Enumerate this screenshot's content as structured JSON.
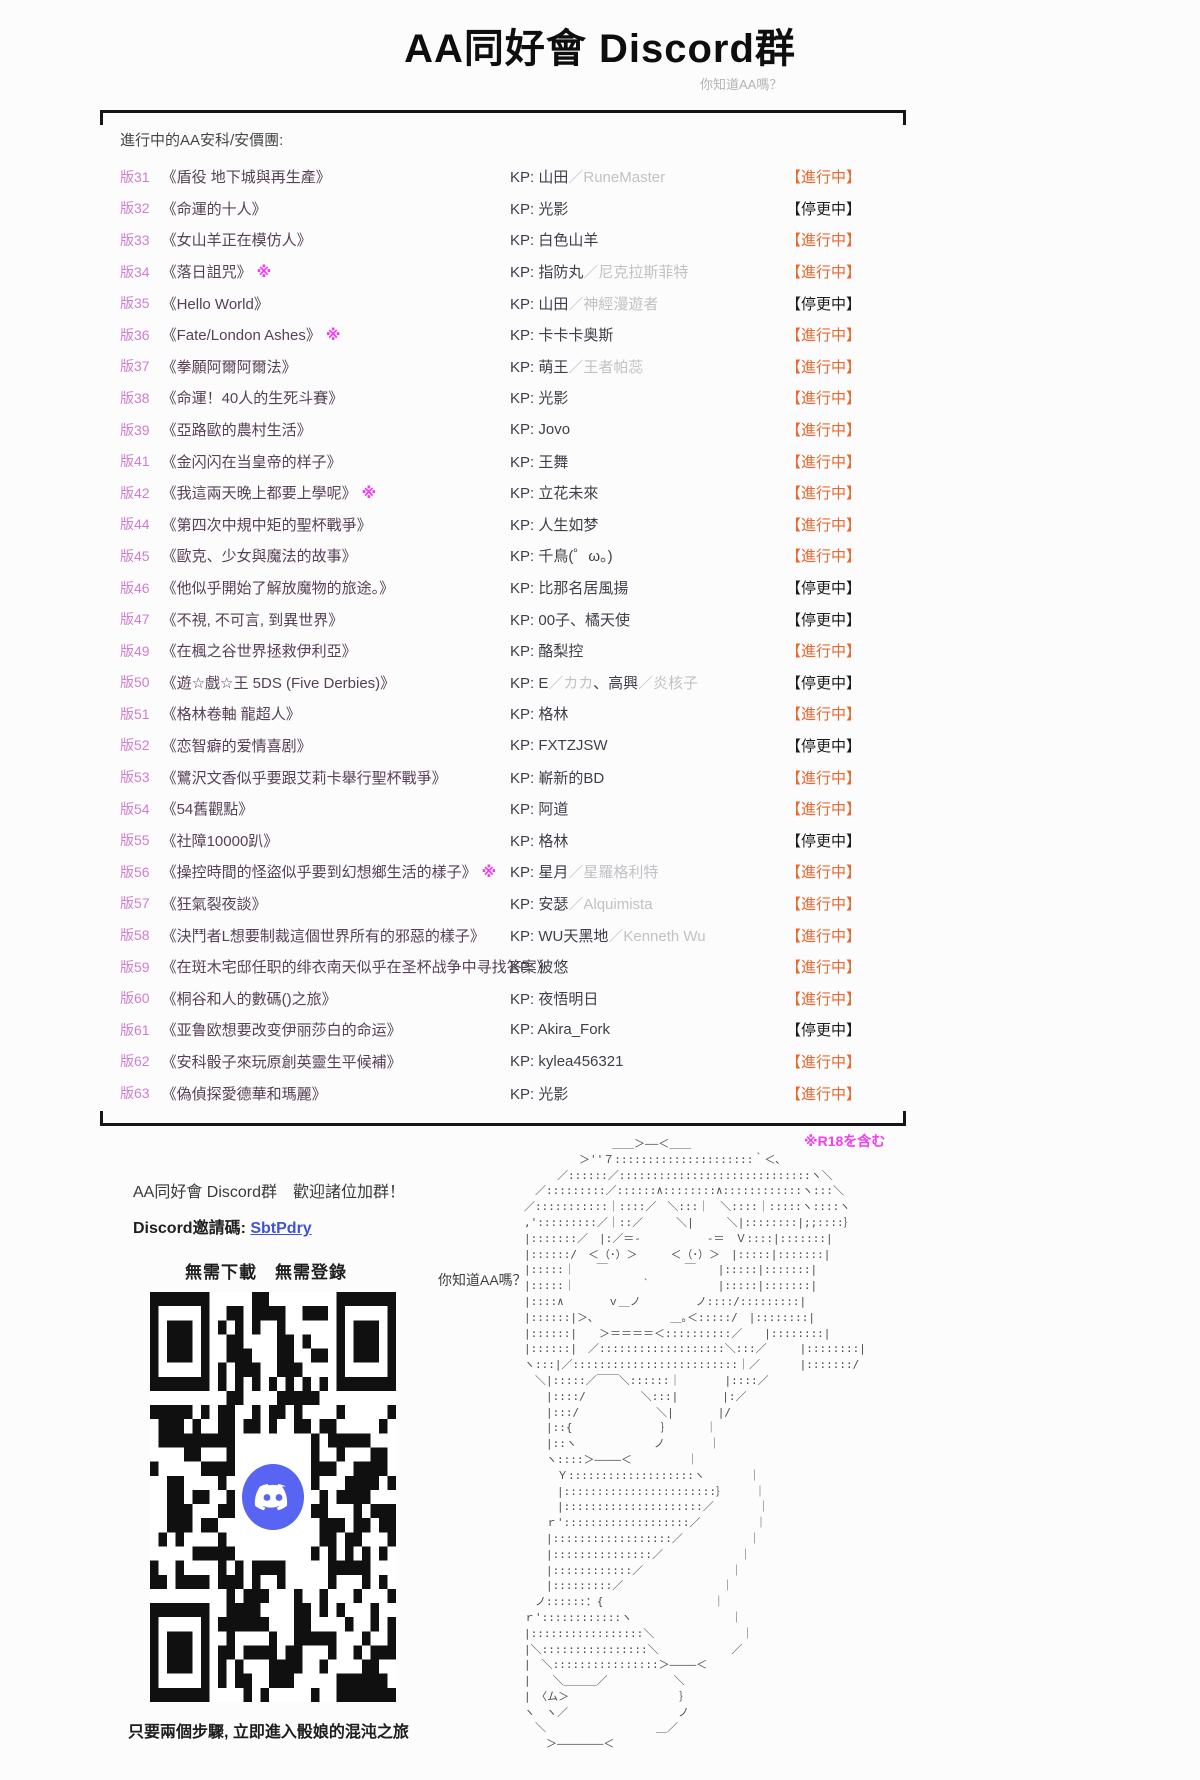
{
  "page": {
    "title": "AA同好會 Discord群",
    "subtitle": "你知道AA嗎？",
    "r18_note": "※R18を含む"
  },
  "colors": {
    "status_active": "#e8682f",
    "status_paused": "#1c1c1c",
    "version_label": "#cf7ecf",
    "title_text": "#584058",
    "r18_mark": "#f23ef2",
    "kp_secondary": "#c2c2c6",
    "link": "#4053d4",
    "discord_blurple": "#5865F2"
  },
  "list": {
    "header": "進行中的AA安科/安價團:",
    "kp_prefix": "KP: ",
    "rows": [
      {
        "num": "版31",
        "title": "《盾役 地下城與再生產》",
        "r18": false,
        "kp": [
          {
            "t": "山田",
            "gray": false
          },
          {
            "t": "／RuneMaster",
            "gray": true
          }
        ],
        "status": "【進行中】",
        "active": true
      },
      {
        "num": "版32",
        "title": "《命運的十人》",
        "r18": false,
        "kp": [
          {
            "t": "光影",
            "gray": false
          }
        ],
        "status": "【停更中】",
        "active": false
      },
      {
        "num": "版33",
        "title": "《女山羊正在模仿人》",
        "r18": false,
        "kp": [
          {
            "t": "白色山羊",
            "gray": false
          }
        ],
        "status": "【進行中】",
        "active": true
      },
      {
        "num": "版34",
        "title": "《落日詛咒》",
        "r18": true,
        "kp": [
          {
            "t": "指防丸",
            "gray": false
          },
          {
            "t": "／尼克拉斯菲特",
            "gray": true
          }
        ],
        "status": "【進行中】",
        "active": true
      },
      {
        "num": "版35",
        "title": "《Hello World》",
        "r18": false,
        "kp": [
          {
            "t": "山田",
            "gray": false
          },
          {
            "t": "／神經漫遊者",
            "gray": true
          }
        ],
        "status": "【停更中】",
        "active": false
      },
      {
        "num": "版36",
        "title": "《Fate/London Ashes》",
        "r18": true,
        "kp": [
          {
            "t": "卡卡卡奥斯",
            "gray": false
          }
        ],
        "status": "【進行中】",
        "active": true
      },
      {
        "num": "版37",
        "title": "《拳願阿爾阿爾法》",
        "r18": false,
        "kp": [
          {
            "t": "萌王",
            "gray": false
          },
          {
            "t": "／王者帕蕊",
            "gray": true
          }
        ],
        "status": "【進行中】",
        "active": true
      },
      {
        "num": "版38",
        "title": "《命運！40人的生死斗賽》",
        "r18": false,
        "kp": [
          {
            "t": "光影",
            "gray": false
          }
        ],
        "status": "【進行中】",
        "active": true
      },
      {
        "num": "版39",
        "title": "《亞路歐的農村生活》",
        "r18": false,
        "kp": [
          {
            "t": "Jovo",
            "gray": false
          }
        ],
        "status": "【進行中】",
        "active": true
      },
      {
        "num": "版41",
        "title": "《金闪闪在当皇帝的样子》",
        "r18": false,
        "kp": [
          {
            "t": "王舞",
            "gray": false
          }
        ],
        "status": "【進行中】",
        "active": true
      },
      {
        "num": "版42",
        "title": "《我這兩天晚上都要上學呢》",
        "r18": true,
        "kp": [
          {
            "t": "立花未來",
            "gray": false
          }
        ],
        "status": "【進行中】",
        "active": true
      },
      {
        "num": "版44",
        "title": "《第四次中規中矩的聖杯戰爭》",
        "r18": false,
        "kp": [
          {
            "t": "人生如梦",
            "gray": false
          }
        ],
        "status": "【進行中】",
        "active": true
      },
      {
        "num": "版45",
        "title": "《歐克、少女與魔法的故事》",
        "r18": false,
        "kp": [
          {
            "t": "千鳥(゜ω。)",
            "gray": false
          }
        ],
        "status": "【進行中】",
        "active": true
      },
      {
        "num": "版46",
        "title": "《他似乎開始了解放魔物的旅途。》",
        "r18": false,
        "kp": [
          {
            "t": "比那名居風揚",
            "gray": false
          }
        ],
        "status": "【停更中】",
        "active": false
      },
      {
        "num": "版47",
        "title": "《不視, 不可言, 到異世界》",
        "r18": false,
        "kp": [
          {
            "t": "00子、橘天使",
            "gray": false
          }
        ],
        "status": "【停更中】",
        "active": false
      },
      {
        "num": "版49",
        "title": "《在楓之谷世界拯救伊利亞》",
        "r18": false,
        "kp": [
          {
            "t": "酪梨控",
            "gray": false
          }
        ],
        "status": "【進行中】",
        "active": true
      },
      {
        "num": "版50",
        "title": "《遊☆戲☆王 5DS (Five Derbies)》",
        "r18": false,
        "kp": [
          {
            "t": "E",
            "gray": false
          },
          {
            "t": "／カカ",
            "gray": true
          },
          {
            "t": "、高興",
            "gray": false
          },
          {
            "t": "／炎核子",
            "gray": true
          }
        ],
        "status": "【停更中】",
        "active": false
      },
      {
        "num": "版51",
        "title": "《格林卷軸 龍超人》",
        "r18": false,
        "kp": [
          {
            "t": "格林",
            "gray": false
          }
        ],
        "status": "【進行中】",
        "active": true
      },
      {
        "num": "版52",
        "title": "《恋智癖的爱情喜剧》",
        "r18": false,
        "kp": [
          {
            "t": "FXTZJSW",
            "gray": false
          }
        ],
        "status": "【停更中】",
        "active": false
      },
      {
        "num": "版53",
        "title": "《鷺沢文香似乎要跟艾莉卡舉行聖杯戰爭》",
        "r18": false,
        "kp": [
          {
            "t": "嶄新的BD",
            "gray": false
          }
        ],
        "status": "【進行中】",
        "active": true
      },
      {
        "num": "版54",
        "title": "《54舊觀點》",
        "r18": false,
        "kp": [
          {
            "t": "阿道",
            "gray": false
          }
        ],
        "status": "【進行中】",
        "active": true
      },
      {
        "num": "版55",
        "title": "《社障10000趴》",
        "r18": false,
        "kp": [
          {
            "t": "格林",
            "gray": false
          }
        ],
        "status": "【停更中】",
        "active": false
      },
      {
        "num": "版56",
        "title": "《操控時間的怪盜似乎要到幻想鄉生活的樣子》",
        "r18": true,
        "kp": [
          {
            "t": "星月",
            "gray": false
          },
          {
            "t": "／星羅格利特",
            "gray": true
          }
        ],
        "status": "【進行中】",
        "active": true
      },
      {
        "num": "版57",
        "title": "《狂氣裂夜談》",
        "r18": false,
        "kp": [
          {
            "t": "安瑟",
            "gray": false
          },
          {
            "t": "／Alquimista",
            "gray": true
          }
        ],
        "status": "【進行中】",
        "active": true
      },
      {
        "num": "版58",
        "title": "《決鬥者L想要制裁這個世界所有的邪惡的樣子》",
        "r18": false,
        "kp": [
          {
            "t": "WU天黑地",
            "gray": false
          },
          {
            "t": "／Kenneth Wu",
            "gray": true
          }
        ],
        "status": "【進行中】",
        "active": true
      },
      {
        "num": "版59",
        "title": "《在斑木宅邸任职的绯衣南天似乎在圣杯战争中寻找答案》",
        "r18": false,
        "kp": [
          {
            "t": "彼悠",
            "gray": false
          }
        ],
        "status": "【進行中】",
        "active": true
      },
      {
        "num": "版60",
        "title": "《桐谷和人的數碼()之旅》",
        "r18": false,
        "kp": [
          {
            "t": "夜悟明日",
            "gray": false
          }
        ],
        "status": "【進行中】",
        "active": true
      },
      {
        "num": "版61",
        "title": "《亚鲁欧想要改变伊丽莎白的命运》",
        "r18": false,
        "kp": [
          {
            "t": "Akira_Fork",
            "gray": false
          }
        ],
        "status": "【停更中】",
        "active": false
      },
      {
        "num": "版62",
        "title": "《安科骰子來玩原創英靈生平候補》",
        "r18": false,
        "kp": [
          {
            "t": "kylea456321",
            "gray": false
          }
        ],
        "status": "【進行中】",
        "active": true
      },
      {
        "num": "版63",
        "title": "《偽偵探愛德華和瑪麗》",
        "r18": false,
        "kp": [
          {
            "t": "光影",
            "gray": false
          }
        ],
        "status": "【進行中】",
        "active": true
      }
    ]
  },
  "footer": {
    "invite_heading": "AA同好會 Discord群　歡迎諸位加群！",
    "invite_code_label": "Discord邀請碼: ",
    "invite_code": "SbtPdry",
    "no_download": "無需下載　無需登錄",
    "qr_caption": "只要兩個步驟, 立即進入骰娘的混沌之旅"
  },
  "ascii_art": {
    "caption": "你知道AA嗎？",
    "lines": [
      "　　　　　　　　　　＿＿＞――＜＿＿",
      "　　　　　　　＞''７:::::::::::::::::::::｀＜､",
      "　　　　　／::::::／:::::::::::::::::::::::::::::ヽ＼",
      "　　　／:::::::::／::::::∧::::::::∧::::::::::::ヽ:::＼",
      "　　／:::::::::::｜::::／　＼:::｜　＼::::｜:::::ヽ::::ヽ",
      "　　,':::::::::／｜::／　　　＼|　　　＼|::::::::|;;::::｝",
      "　　|:::::::／　|:／＝-　　　　　　-＝　Ｖ::::|:::::::|",
      "　　|::::::/　＜（･）＞　　　＜（･）＞　|:::::|:::::::|",
      "　　|:::::｜　　￣　　　　　　　￣　　|:::::|:::::::|",
      "　　|:::::｜　　　　　　｀　　　　　　|:::::|:::::::|",
      "　　|::::∧　　　　ｖ＿ノ　　　　　ノ::::/:::::::::|",
      "　　|::::::|＞､　　　　　　　＿｡＜:::::/　|::::::::|",
      "　　|::::::|　　＞＝＝＝＝＜::::::::::／　　|::::::::|",
      "　　|::::::|　／:::::::::::::::::::＼:::／　　　|::::::::|",
      "　　ヽ:::|／:::::::::::::::::::::::::｜／　　　 |:::::::/",
      "　　　＼|:::::／￣￣＼::::::｜　　　　|::::／",
      "　　　　|::::/　　　　　＼:::|　　　　|:／",
      "　　　　|:::/　　　　　　　＼|　　　　|/",
      "　　　　|::{　　　　　　　　｝　　　 ｜",
      "　　　　|::ヽ　　　　　　　ノ　　　　｜",
      "　　　　ヽ::::＞――――＜　　　　　｜",
      "　　　　　Ｙ:::::::::::::::::::ヽ　　　　｜",
      "　　　　　|:::::::::::::::::::::::｝　　　｜",
      "　　　　　|:::::::::::::::::::::／　　　　｜",
      "　　　　ｒ':::::::::::::::::::／　　　　　｜",
      "　　　　|::::::::::::::::::／　　　　　　｜",
      "　　　　|:::::::::::::::／　　　　　　　｜",
      "　　　　|::::::::::::／　　　　　　　　｜",
      "　　　　|:::::::::／　　　　　　　　　｜",
      "　　　ノ::::::：{　　　　　　　　　　｜",
      "　　ｒ'::::::::::::ヽ　　　　　　　　　｜",
      "　　|:::::::::::::::::＼　　　　　　　　｜",
      "　　|＼::::::::::::::::＼　　　　　　 ／",
      "　　|　＼::::::::::::::::＞――――＜",
      "　　|　　＼＿＿＿／　　　　　　＼",
      "　　|　〈ム＞　　　　　　　　　　｝",
      "　　ヽ　ヽ／　　　　　　　　　　ノ",
      "　　　＼　　　　　　　　　　＿／",
      "　　　　＞―――――――＜",
      "　　　　　　　　　　　　　"
    ]
  }
}
